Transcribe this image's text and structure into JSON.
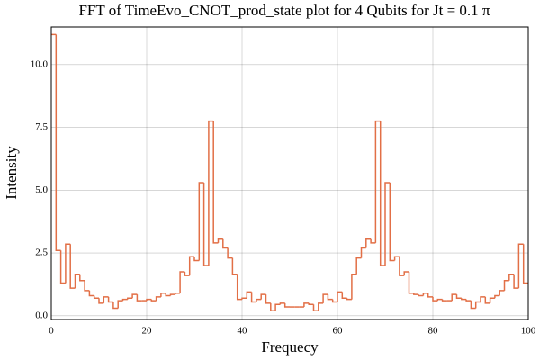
{
  "chart_data": {
    "type": "step",
    "title": "FFT of TimeEvo_CNOT_prod_state plot for 4 Qubits for Jt = 0.1 π",
    "x_label": "Frequecy",
    "y_label": "Intensity",
    "x": [
      0,
      1,
      2,
      3,
      4,
      5,
      6,
      7,
      8,
      9,
      10,
      11,
      12,
      13,
      14,
      15,
      16,
      17,
      18,
      19,
      20,
      21,
      22,
      23,
      24,
      25,
      26,
      27,
      28,
      29,
      30,
      31,
      32,
      33,
      34,
      35,
      36,
      37,
      38,
      39,
      40,
      41,
      42,
      43,
      44,
      45,
      46,
      47,
      48,
      49,
      50,
      51,
      52,
      53,
      54,
      55,
      56,
      57,
      58,
      59,
      60,
      61,
      62,
      63,
      64,
      65,
      66,
      67,
      68,
      69,
      70,
      71,
      72,
      73,
      74,
      75,
      76,
      77,
      78,
      79,
      80,
      81,
      82,
      83,
      84,
      85,
      86,
      87,
      88,
      89,
      90,
      91,
      92,
      93,
      94,
      95,
      96,
      97,
      98,
      99
    ],
    "values": [
      11.2,
      2.6,
      1.3,
      2.85,
      1.1,
      1.65,
      1.4,
      1.0,
      0.8,
      0.7,
      0.5,
      0.75,
      0.55,
      0.3,
      0.6,
      0.65,
      0.7,
      0.85,
      0.6,
      0.6,
      0.65,
      0.6,
      0.75,
      0.9,
      0.8,
      0.85,
      0.9,
      1.75,
      1.6,
      2.35,
      2.2,
      5.3,
      2.0,
      7.75,
      2.9,
      3.05,
      2.7,
      2.3,
      1.65,
      0.65,
      0.7,
      0.95,
      0.55,
      0.65,
      0.85,
      0.5,
      0.2,
      0.45,
      0.5,
      0.35,
      0.35,
      0.35,
      0.35,
      0.5,
      0.45,
      0.2,
      0.5,
      0.85,
      0.65,
      0.55,
      0.95,
      0.7,
      0.65,
      1.65,
      2.3,
      2.7,
      3.05,
      2.9,
      7.75,
      2.0,
      5.3,
      2.2,
      2.35,
      1.6,
      1.75,
      0.9,
      0.85,
      0.8,
      0.9,
      0.75,
      0.6,
      0.65,
      0.6,
      0.6,
      0.85,
      0.7,
      0.65,
      0.6,
      0.3,
      0.55,
      0.75,
      0.5,
      0.7,
      0.8,
      1.0,
      1.4,
      1.65,
      1.1,
      2.85,
      1.3
    ],
    "color": "#e26f46",
    "xlim": [
      0,
      100
    ],
    "xticks": [
      0,
      20,
      40,
      60,
      80,
      100
    ],
    "ylim": [
      -0.15,
      11.5
    ],
    "yticks": [
      {
        "value": 0,
        "label": "0.0"
      },
      {
        "value": 2.5,
        "label": "2.5"
      },
      {
        "value": 5,
        "label": "5.0"
      },
      {
        "value": 7.5,
        "label": "7.5"
      },
      {
        "value": 10,
        "label": "10.0"
      }
    ],
    "grid": true
  }
}
